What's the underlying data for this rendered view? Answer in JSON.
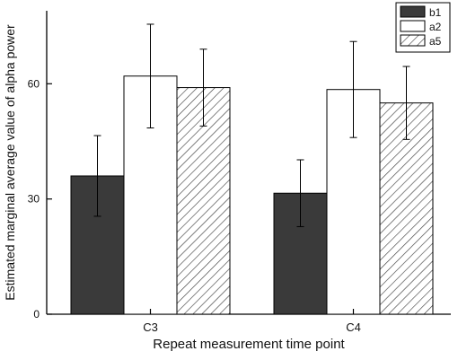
{
  "chart_data": {
    "type": "bar",
    "title": "",
    "xlabel": "Repeat measurement time point",
    "ylabel": "Estimated marginal average value of alpha power",
    "categories": [
      "C3",
      "C4"
    ],
    "ylim": [
      0,
      79
    ],
    "yticks": [
      0,
      30,
      60
    ],
    "grid": false,
    "legend_position": "top-right",
    "series": [
      {
        "name": "b1",
        "values": [
          36,
          31.5
        ],
        "error": [
          10.5,
          8.7
        ],
        "style": "solid",
        "color": "#3a3a3a"
      },
      {
        "name": "a2",
        "values": [
          62,
          58.5
        ],
        "error": [
          13.5,
          12.5
        ],
        "style": "open",
        "color": "#ffffff"
      },
      {
        "name": "a5",
        "values": [
          59,
          55
        ],
        "error": [
          10,
          9.5
        ],
        "style": "hatch",
        "color": "#ffffff"
      }
    ]
  }
}
